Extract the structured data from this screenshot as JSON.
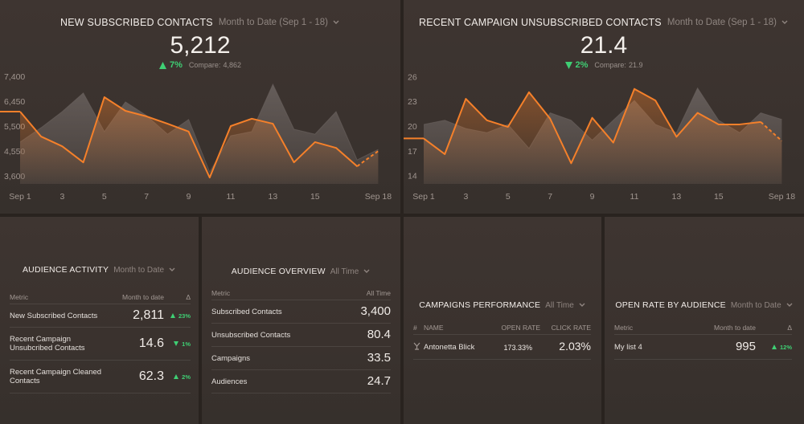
{
  "widgets": [
    {
      "title": "NEW SUBSCRIBED CONTACTS",
      "period": "Month to Date (Sep 1 - 18)",
      "value": "5,212",
      "change": "7%",
      "trend": "up",
      "compare_label": "Compare:",
      "compare_value": "4,862",
      "chart": {
        "type": "line",
        "x": [
          "Sep 1",
          null,
          "3",
          null,
          "5",
          null,
          "7",
          null,
          "9",
          null,
          "11",
          null,
          "13",
          null,
          "15",
          null,
          null,
          "Sep 18"
        ],
        "ylim": [
          3300,
          7700
        ],
        "yticks": [
          {
            "value": 3600,
            "label": "3,600"
          },
          {
            "value": 4550,
            "label": "4,550"
          },
          {
            "value": 5500,
            "label": "5,500"
          },
          {
            "value": 6450,
            "label": "6,450"
          },
          {
            "value": 7400,
            "label": "7,400"
          }
        ],
        "series": [
          {
            "color": "#f5802a",
            "values": [
              6050,
              5100,
              4730,
              4120,
              6600,
              6080,
              5870,
              5590,
              5290,
              3540,
              5500,
              5780,
              5590,
              4120,
              4890,
              4670,
              3970,
              4550
            ]
          },
          {
            "color": "#6c6461",
            "values": [
              4890,
              5440,
              6050,
              6760,
              5290,
              6420,
              5900,
              5190,
              5750,
              3750,
              5130,
              5290,
              7090,
              5380,
              5190,
              6050,
              4210,
              4610
            ]
          }
        ]
      }
    },
    {
      "title": "RECENT CAMPAIGN UNSUBSCRIBED CONTACTS",
      "period": "Month to Date (Sep 1 - 18)",
      "value": "21.4",
      "change": "2%",
      "trend": "down",
      "compare_label": "Compare:",
      "compare_value": "21.9",
      "chart": {
        "type": "line",
        "x": [
          "Sep 1",
          null,
          "3",
          null,
          "5",
          null,
          "7",
          null,
          "9",
          null,
          "11",
          null,
          "13",
          null,
          "15",
          null,
          null,
          "Sep 18"
        ],
        "ylim": [
          13,
          27
        ],
        "yticks": [
          14,
          17,
          20,
          23,
          26
        ],
        "series": [
          {
            "color": "#f5802a",
            "values": [
              18.5,
              16.6,
              23.3,
              20.7,
              19.9,
              24.1,
              20.9,
              15.5,
              21.0,
              18.0,
              24.5,
              23.1,
              18.7,
              21.6,
              20.2,
              20.2,
              20.5,
              18.2
            ]
          },
          {
            "color": "#6c6461",
            "values": [
              20.2,
              20.7,
              19.7,
              19.2,
              20.2,
              17.3,
              21.6,
              20.7,
              18.3,
              20.7,
              23.1,
              20.2,
              19.2,
              24.6,
              20.7,
              19.2,
              21.6,
              20.8
            ]
          }
        ]
      }
    },
    {
      "title": "AUDIENCE ACTIVITY",
      "period": "Month to Date",
      "table": {
        "columns": [
          "Metric",
          "Month to date",
          "Δ"
        ],
        "rows": [
          [
            "New Subscribed Contacts",
            "2,811",
            "23%"
          ],
          [
            "Recent Campaign Unsubcribed Contacts",
            "14.6",
            "1%"
          ],
          [
            "Recent Campaign Cleaned Contacts",
            "62.3",
            "2%"
          ]
        ],
        "trends": [
          "up",
          "down",
          "up"
        ]
      }
    },
    {
      "title": "AUDIENCE OVERVIEW",
      "period": "All Time",
      "table": {
        "columns": [
          "Metric",
          "All Time"
        ],
        "rows": [
          [
            "Subscribed Contacts",
            "3,400"
          ],
          [
            "Unsubscribed Contacts",
            "80.4"
          ],
          [
            "Campaigns",
            "33.5"
          ],
          [
            "Audiences",
            "24.7"
          ]
        ]
      }
    },
    {
      "title": "CAMPAIGNS PERFORMANCE",
      "period": "All Time",
      "table": {
        "columns": [
          "#",
          "NAME",
          "OPEN RATE",
          "CLICK RATE"
        ],
        "rows": [
          [
            "Antonetta Blick",
            "173.33%",
            "2.03%"
          ]
        ]
      }
    },
    {
      "title": "OPEN RATE BY AUDIENCE",
      "period": "Month to Date",
      "table": {
        "columns": [
          "Metric",
          "Month to date",
          "Δ"
        ],
        "rows": [
          [
            "My list 4",
            "995",
            "12%"
          ]
        ],
        "trends": [
          "up"
        ]
      }
    }
  ]
}
